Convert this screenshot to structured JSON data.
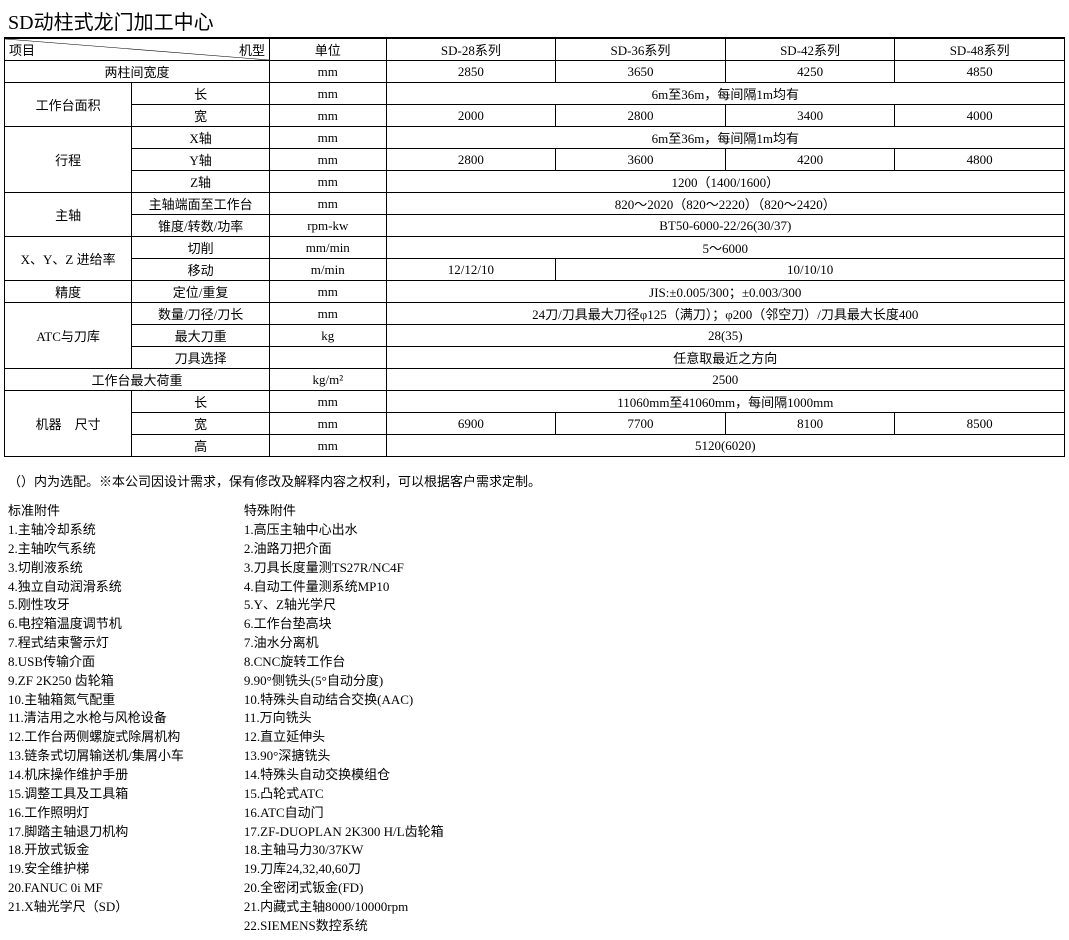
{
  "title": "SD动柱式龙门加工中心",
  "colors": {
    "border": "#000000",
    "background": "#ffffff",
    "text": "#000000"
  },
  "header": {
    "project_label_left": "项目",
    "project_label_right": "机型",
    "unit_label": "单位",
    "series": [
      "SD-28系列",
      "SD-36系列",
      "SD-42系列",
      "SD-48系列"
    ]
  },
  "rows": [
    {
      "group": "两柱间宽度",
      "sub": null,
      "unit": "mm",
      "vals": [
        "2850",
        "3650",
        "4250",
        "4850"
      ],
      "merged": false
    },
    {
      "group": "工作台面积",
      "sub": "长",
      "unit": "mm",
      "vals_merged": "6m至36m，每间隔1m均有",
      "merged": true,
      "group_rowspan": 2
    },
    {
      "group": null,
      "sub": "宽",
      "unit": "mm",
      "vals": [
        "2000",
        "2800",
        "3400",
        "4000"
      ],
      "merged": false
    },
    {
      "group": "行程",
      "sub": "X轴",
      "unit": "mm",
      "vals_merged": "6m至36m，每间隔1m均有",
      "merged": true,
      "group_rowspan": 3
    },
    {
      "group": null,
      "sub": "Y轴",
      "unit": "mm",
      "vals": [
        "2800",
        "3600",
        "4200",
        "4800"
      ],
      "merged": false
    },
    {
      "group": null,
      "sub": "Z轴",
      "unit": "mm",
      "vals_merged": "1200（1400/1600）",
      "merged": true
    },
    {
      "group": "主轴",
      "sub": "主轴端面至工作台",
      "unit": "mm",
      "vals_merged": "820～2020（820～2220）（820～2420）",
      "merged": true,
      "group_rowspan": 2
    },
    {
      "group": null,
      "sub": "锥度/转数/功率",
      "unit": "rpm-kw",
      "vals_merged": "BT50-6000-22/26(30/37)",
      "merged": true
    },
    {
      "group": "X、Y、Z 进给率",
      "sub": "切削",
      "unit": "mm/min",
      "vals_merged": "5～6000",
      "merged": true,
      "group_rowspan": 2
    },
    {
      "group": null,
      "sub": "移动",
      "unit": "m/min",
      "vals": [
        "12/12/10",
        "",
        "10/10/10",
        ""
      ],
      "merged": false,
      "split13": true
    },
    {
      "group": "精度",
      "sub": "定位/重复",
      "unit": "mm",
      "vals_merged": "JIS:±0.005/300；±0.003/300",
      "merged": true,
      "group_rowspan": 1
    },
    {
      "group": "ATC与刀库",
      "sub": "数量/刀径/刀长",
      "unit": "mm",
      "vals_merged": "24刀/刀具最大刀径φ125（满刀）；φ200（邻空刀）/刀具最大长度400",
      "merged": true,
      "group_rowspan": 3
    },
    {
      "group": null,
      "sub": "最大刀重",
      "unit": "kg",
      "vals_merged": "28(35)",
      "merged": true
    },
    {
      "group": null,
      "sub": "刀具选择",
      "unit": "",
      "vals_merged": "任意取最近之方向",
      "merged": true
    },
    {
      "group": "工作台最大荷重",
      "sub": null,
      "unit": "kg/m²",
      "vals_merged": "2500",
      "merged": true
    },
    {
      "group": "机器　尺寸",
      "sub": "长",
      "unit": "mm",
      "vals_merged": "11060mm至41060mm，每间隔1000mm",
      "merged": true,
      "group_rowspan": 3
    },
    {
      "group": null,
      "sub": "宽",
      "unit": "mm",
      "vals": [
        "6900",
        "7700",
        "8100",
        "8500"
      ],
      "merged": false
    },
    {
      "group": null,
      "sub": "高",
      "unit": "mm",
      "vals_merged": "5120(6020)",
      "merged": true
    }
  ],
  "note": "（）内为选配。※本公司因设计需求，保有修改及解释内容之权利，可以根据客户需求定制。",
  "standard_accessories": {
    "title": "标准附件",
    "items": [
      "1.主轴冷却系统",
      "2.主轴吹气系统",
      "3.切削液系统",
      "4.独立自动润滑系统",
      "5.刚性攻牙",
      "6.电控箱温度调节机",
      "7.程式结束警示灯",
      "8.USB传输介面",
      "9.ZF 2K250 齿轮箱",
      "10.主轴箱氮气配重",
      "11.清洁用之水枪与风枪设备",
      "12.工作台两侧螺旋式除屑机构",
      "13.链条式切屑输送机/集屑小车",
      "14.机床操作维护手册",
      "15.调整工具及工具箱",
      "16.工作照明灯",
      "17.脚踏主轴退刀机构",
      "18.开放式钣金",
      "19.安全维护梯",
      "20.FANUC 0i MF",
      "21.X轴光学尺（SD）"
    ]
  },
  "special_accessories": {
    "title": "特殊附件",
    "items": [
      "1.高压主轴中心出水",
      "2.油路刀把介面",
      "3.刀具长度量测TS27R/NC4F",
      "4.自动工件量测系统MP10",
      "5.Y、Z轴光学尺",
      "6.工作台垫高块",
      "7.油水分离机",
      "8.CNC旋转工作台",
      "9.90°侧铣头(5°自动分度)",
      "10.特殊头自动结合交换(AAC)",
      "11.万向铣头",
      "12.直立延伸头",
      "13.90°深搪铣头",
      "14.特殊头自动交换模组仓",
      "15.凸轮式ATC",
      "16.ATC自动门",
      "17.ZF-DUOPLAN 2K300 H/L齿轮箱",
      "18.主轴马力30/37KW",
      "19.刀库24,32,40,60刀",
      "20.全密闭式钣金(FD)",
      "21.内藏式主轴8000/10000rpm",
      "22.SIEMENS数控系统"
    ]
  },
  "col_widths_pct": [
    12,
    13,
    11,
    16,
    16,
    16,
    16
  ]
}
